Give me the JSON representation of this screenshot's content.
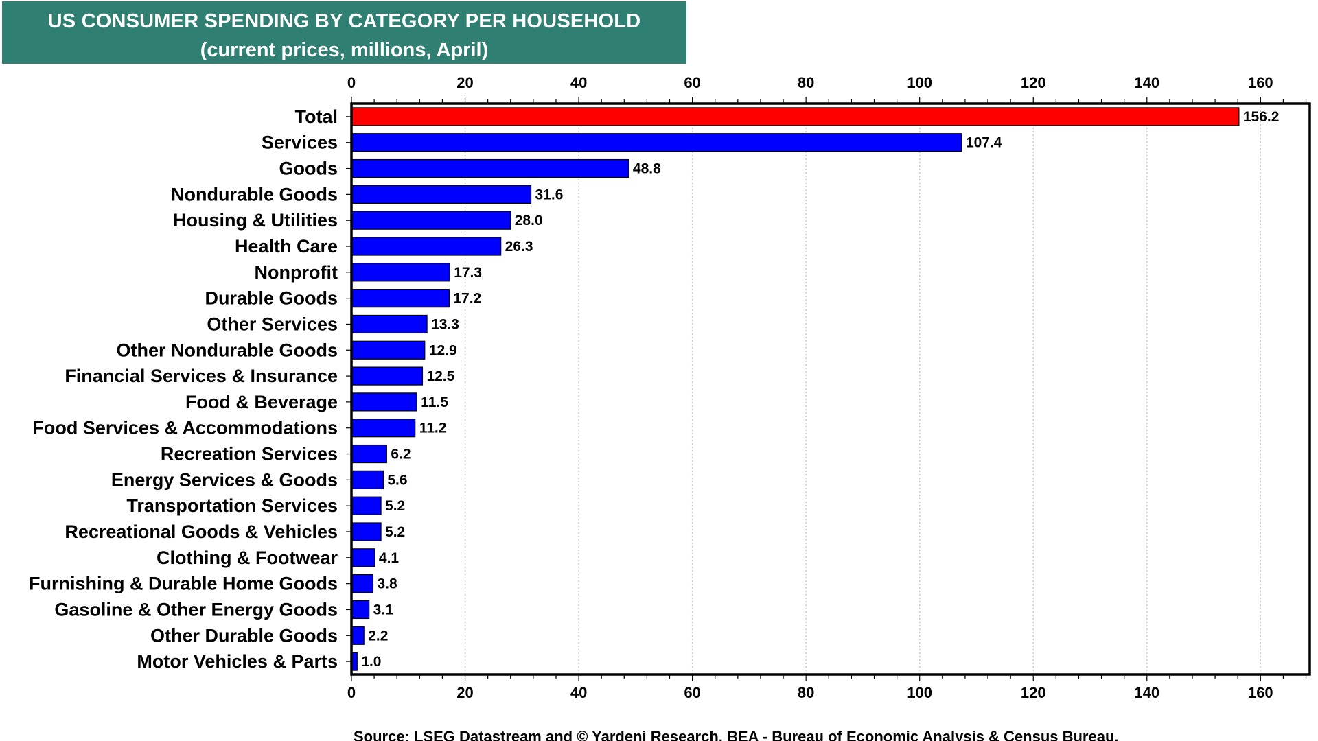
{
  "chart_data": {
    "type": "bar",
    "orientation": "horizontal",
    "title": "US CONSUMER SPENDING BY CATEGORY PER HOUSEHOLD",
    "subtitle": "(current prices, millions, April)",
    "categories": [
      "Total",
      "Services",
      "Goods",
      "Nondurable Goods",
      "Housing & Utilities",
      "Health Care",
      "Nonprofit",
      "Durable Goods",
      "Other Services",
      "Other Nondurable Goods",
      "Financial Services & Insurance",
      "Food & Beverage",
      "Food Services & Accommodations",
      "Recreation Services",
      "Energy Services & Goods",
      "Transportation Services",
      "Recreational Goods & Vehicles",
      "Clothing & Footwear",
      "Furnishing & Durable Home Goods",
      "Gasoline & Other Energy Goods",
      "Other Durable Goods",
      "Motor Vehicles & Parts"
    ],
    "values": [
      156.2,
      107.4,
      48.8,
      31.6,
      28.0,
      26.3,
      17.3,
      17.2,
      13.3,
      12.9,
      12.5,
      11.5,
      11.2,
      6.2,
      5.6,
      5.2,
      5.2,
      4.1,
      3.8,
      3.1,
      2.2,
      1.0
    ],
    "value_labels": [
      "156.2",
      "107.4",
      "48.8",
      "31.6",
      "28.0",
      "26.3",
      "17.3",
      "17.2",
      "13.3",
      "12.9",
      "12.5",
      "11.5",
      "11.2",
      "6.2",
      "5.6",
      "5.2",
      "5.2",
      "4.1",
      "3.8",
      "3.1",
      "2.2",
      "1.0"
    ],
    "highlight_index": 0,
    "colors": {
      "highlight": "#ff0000",
      "bar": "#0000ff",
      "bar_outline": "#000000",
      "title_bg": "#2f7f73",
      "title_text": "#ffffff",
      "grid": "#c8c8c8"
    },
    "xlim": [
      0,
      169
    ],
    "xticks": [
      0,
      20,
      40,
      60,
      80,
      100,
      120,
      140,
      160
    ],
    "axis_position": "top and bottom",
    "grid": "vertical dotted",
    "legend": "none",
    "source": "Source: LSEG Datastream and © Yardeni Research. BEA - Bureau of Economic Analysis & Census Bureau."
  }
}
